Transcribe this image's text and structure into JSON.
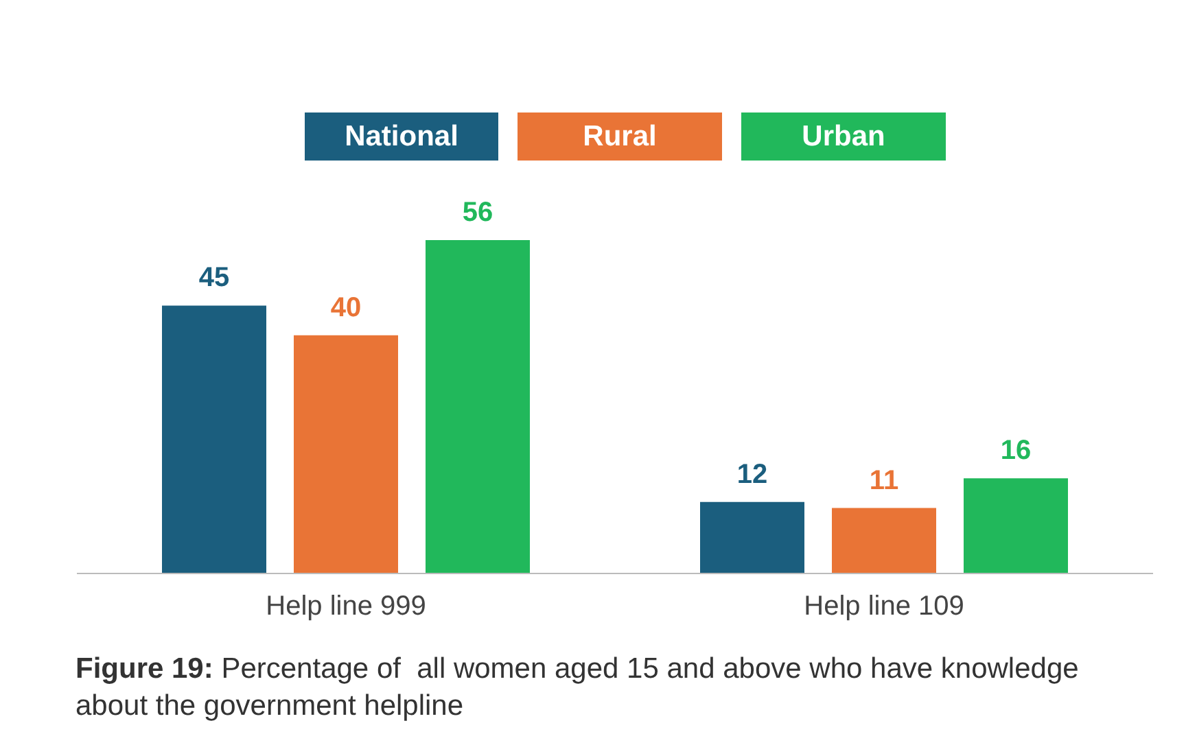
{
  "chart_data": {
    "type": "bar",
    "title": "Figure 19: Percentage of  all women aged 15 and above who have knowledge about the government helpline",
    "categories": [
      "Help line 999",
      "Help line 109"
    ],
    "series": [
      {
        "name": "National",
        "color": "#1b5e7e",
        "values": [
          45,
          12
        ]
      },
      {
        "name": "Rural",
        "color": "#e97436",
        "values": [
          40,
          11
        ]
      },
      {
        "name": "Urban",
        "color": "#21b85b",
        "values": [
          56,
          16
        ]
      }
    ],
    "data_labels": true,
    "legend": "top",
    "grid": false
  }
}
